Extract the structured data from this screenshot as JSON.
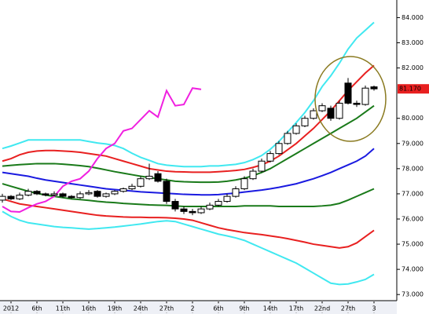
{
  "chart_data": {
    "type": "candlestick",
    "categories": [
      null,
      "2012",
      null,
      null,
      "6th",
      null,
      null,
      "11th",
      null,
      null,
      "16th",
      null,
      null,
      "19th",
      null,
      null,
      "24th",
      null,
      null,
      "27th",
      null,
      null,
      "2",
      null,
      null,
      "6th",
      null,
      null,
      "9th",
      null,
      null,
      "14th",
      null,
      null,
      "17th",
      null,
      null,
      "22nd",
      null,
      null,
      "27th",
      null,
      null,
      "3"
    ],
    "open": [
      76.75,
      76.9,
      76.8,
      76.95,
      77.1,
      77.0,
      76.95,
      77.0,
      76.9,
      76.85,
      77.0,
      77.1,
      76.9,
      77.0,
      77.1,
      77.2,
      77.3,
      77.6,
      77.8,
      77.5,
      76.7,
      76.4,
      76.3,
      76.25,
      76.4,
      76.55,
      76.7,
      76.9,
      77.2,
      77.6,
      77.9,
      78.3,
      78.6,
      79.0,
      79.4,
      79.7,
      80.0,
      80.3,
      80.4,
      80.0,
      81.4,
      80.6,
      80.55,
      81.25
    ],
    "high": [
      77.0,
      76.95,
      77.05,
      77.2,
      77.15,
      77.05,
      77.1,
      77.05,
      76.95,
      77.1,
      77.15,
      77.15,
      77.05,
      77.15,
      77.25,
      77.4,
      77.7,
      78.2,
      77.9,
      77.6,
      76.8,
      76.5,
      76.4,
      76.5,
      76.65,
      76.8,
      77.0,
      77.3,
      77.7,
      78.0,
      78.4,
      78.7,
      79.1,
      79.5,
      79.8,
      80.1,
      80.4,
      80.6,
      80.5,
      80.7,
      81.6,
      80.7,
      81.3,
      81.3
    ],
    "low": [
      76.65,
      76.75,
      76.75,
      76.9,
      76.95,
      76.9,
      76.9,
      76.85,
      76.8,
      76.8,
      76.95,
      76.85,
      76.85,
      76.95,
      77.05,
      77.15,
      77.25,
      77.55,
      77.45,
      76.6,
      76.3,
      76.2,
      76.15,
      76.2,
      76.35,
      76.5,
      76.65,
      76.85,
      77.15,
      77.55,
      77.85,
      78.25,
      78.55,
      78.95,
      79.35,
      79.65,
      79.95,
      80.25,
      79.9,
      79.95,
      80.55,
      80.45,
      80.5,
      81.1
    ],
    "close": [
      76.9,
      76.8,
      76.95,
      77.1,
      77.0,
      76.95,
      77.0,
      76.9,
      76.85,
      77.0,
      77.05,
      76.9,
      77.0,
      77.1,
      77.2,
      77.3,
      77.6,
      77.7,
      77.5,
      76.7,
      76.4,
      76.3,
      76.25,
      76.4,
      76.55,
      76.7,
      76.9,
      77.2,
      77.6,
      77.9,
      78.3,
      78.6,
      79.0,
      79.4,
      79.7,
      80.0,
      80.3,
      80.5,
      80.0,
      80.6,
      80.6,
      80.55,
      81.2,
      81.17
    ],
    "series": [
      {
        "color": "#40e8f0",
        "values": [
          78.8,
          78.9,
          79.02,
          79.14,
          79.14,
          79.14,
          79.14,
          79.14,
          79.14,
          79.14,
          79.08,
          79.02,
          78.98,
          78.92,
          78.8,
          78.61,
          78.45,
          78.33,
          78.2,
          78.14,
          78.11,
          78.08,
          78.08,
          78.08,
          78.11,
          78.11,
          78.14,
          78.17,
          78.24,
          78.36,
          78.52,
          78.77,
          79.08,
          79.45,
          79.83,
          80.23,
          80.7,
          81.26,
          81.69,
          82.19,
          82.75,
          83.19,
          83.5,
          83.81
        ]
      },
      {
        "color": "#e82020",
        "values": [
          78.3,
          78.4,
          78.55,
          78.65,
          78.7,
          78.72,
          78.72,
          78.7,
          78.68,
          78.65,
          78.6,
          78.55,
          78.5,
          78.4,
          78.3,
          78.2,
          78.1,
          78.0,
          77.95,
          77.9,
          77.88,
          77.87,
          77.86,
          77.86,
          77.86,
          77.88,
          77.9,
          77.93,
          77.97,
          78.05,
          78.15,
          78.3,
          78.5,
          78.75,
          79.0,
          79.3,
          79.6,
          79.95,
          80.3,
          80.7,
          81.1,
          81.45,
          81.8,
          82.1
        ]
      },
      {
        "color": "#1a7a1a",
        "values": [
          78.1,
          78.13,
          78.16,
          78.18,
          78.2,
          78.2,
          78.2,
          78.18,
          78.15,
          78.12,
          78.08,
          78.02,
          77.95,
          77.88,
          77.82,
          77.76,
          77.7,
          77.65,
          77.6,
          77.55,
          77.5,
          77.48,
          77.47,
          77.46,
          77.46,
          77.47,
          77.5,
          77.55,
          77.62,
          77.72,
          77.85,
          78.0,
          78.2,
          78.4,
          78.6,
          78.8,
          79.0,
          79.2,
          79.4,
          79.6,
          79.8,
          80.0,
          80.25,
          80.5
        ]
      },
      {
        "color": "#1a1ae0",
        "values": [
          77.85,
          77.8,
          77.75,
          77.7,
          77.62,
          77.55,
          77.5,
          77.45,
          77.4,
          77.35,
          77.3,
          77.25,
          77.2,
          77.17,
          77.14,
          77.11,
          77.08,
          77.06,
          77.04,
          77.02,
          77.0,
          76.98,
          76.97,
          76.96,
          76.96,
          76.97,
          77.0,
          77.03,
          77.07,
          77.11,
          77.15,
          77.2,
          77.26,
          77.33,
          77.4,
          77.5,
          77.6,
          77.72,
          77.85,
          78.0,
          78.15,
          78.3,
          78.5,
          78.8
        ]
      },
      {
        "color": "#1a7a1a",
        "values": [
          77.4,
          77.3,
          77.2,
          77.1,
          77.02,
          76.95,
          76.9,
          76.85,
          76.8,
          76.77,
          76.74,
          76.7,
          76.67,
          76.65,
          76.62,
          76.6,
          76.58,
          76.56,
          76.55,
          76.54,
          76.52,
          76.5,
          76.5,
          76.5,
          76.5,
          76.5,
          76.5,
          76.5,
          76.52,
          76.52,
          76.52,
          76.52,
          76.5,
          76.5,
          76.5,
          76.5,
          76.5,
          76.52,
          76.55,
          76.62,
          76.75,
          76.9,
          77.05,
          77.2
        ]
      },
      {
        "color": "#e82020",
        "values": [
          76.8,
          76.7,
          76.6,
          76.55,
          76.5,
          76.45,
          76.4,
          76.35,
          76.3,
          76.25,
          76.2,
          76.15,
          76.12,
          76.1,
          76.08,
          76.07,
          76.07,
          76.06,
          76.06,
          76.05,
          76.03,
          76.0,
          75.95,
          75.85,
          75.75,
          75.65,
          75.58,
          75.52,
          75.46,
          75.42,
          75.38,
          75.33,
          75.28,
          75.22,
          75.15,
          75.08,
          75.0,
          74.95,
          74.9,
          74.85,
          74.9,
          75.05,
          75.3,
          75.55
        ]
      },
      {
        "color": "#40e8f0",
        "values": [
          76.3,
          76.1,
          75.95,
          75.85,
          75.8,
          75.75,
          75.7,
          75.67,
          75.65,
          75.62,
          75.6,
          75.62,
          75.65,
          75.68,
          75.72,
          75.76,
          75.8,
          75.85,
          75.9,
          75.93,
          75.9,
          75.8,
          75.7,
          75.6,
          75.5,
          75.4,
          75.33,
          75.25,
          75.15,
          75.0,
          74.85,
          74.7,
          74.55,
          74.4,
          74.25,
          74.05,
          73.85,
          73.65,
          73.45,
          73.4,
          73.42,
          73.5,
          73.6,
          73.8
        ]
      },
      {
        "color": "#f020e0",
        "values": [
          76.5,
          76.3,
          76.28,
          76.45,
          76.6,
          76.7,
          76.9,
          77.3,
          77.5,
          77.6,
          77.9,
          78.4,
          78.8,
          79.0,
          79.5,
          79.6,
          79.95,
          80.3,
          80.05,
          81.1,
          80.5,
          80.55,
          81.2,
          81.15,
          null,
          null,
          null,
          null,
          null,
          null,
          null,
          null,
          null,
          null,
          null,
          null,
          null,
          null,
          null,
          null,
          null,
          null,
          null,
          null
        ]
      }
    ],
    "ylim": [
      72.85,
      84.7
    ],
    "yticks": [
      {
        "value": 73,
        "label": "73.000"
      },
      {
        "value": 74,
        "label": "74.000"
      },
      {
        "value": 75,
        "label": "75.000"
      },
      {
        "value": 76,
        "label": "76.000"
      },
      {
        "value": 77,
        "label": "77.000"
      },
      {
        "value": 78,
        "label": "78.000"
      },
      {
        "value": 79,
        "label": "79.000"
      },
      {
        "value": 80,
        "label": "80.000"
      },
      {
        "value": 82,
        "label": "82.000"
      },
      {
        "value": 83,
        "label": "83.000"
      },
      {
        "value": 84,
        "label": "84.000"
      }
    ],
    "last_price": {
      "value": 81.17,
      "label": "81.170"
    },
    "up_color": "#ffffff",
    "down_color": "#000000"
  }
}
